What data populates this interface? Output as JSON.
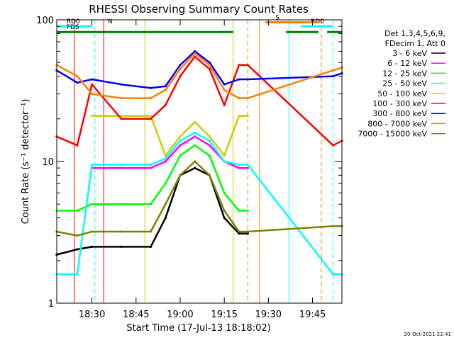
{
  "chart_data": {
    "type": "line",
    "title": "RHESSI Observing Summary Count Rates",
    "xlabel": "Start Time (17-Jul-13 18:18:02)",
    "ylabel": "Count Rate (s⁻¹ detector⁻¹)",
    "y_scale": "log",
    "ylim": [
      1,
      100
    ],
    "xlim": [
      "18:18:02",
      "19:55:00"
    ],
    "x_ticks": [
      "18:30",
      "18:45",
      "19:00",
      "19:15",
      "19:30",
      "19:45"
    ],
    "y_ticks": [
      "1",
      "10",
      "100"
    ],
    "legend_title": [
      "Det 1,3,4,5,6,9,",
      "FDecim 1, Att 0"
    ],
    "legend_position": "right",
    "timestamp": "20-Oct-2021 22:41",
    "series": [
      {
        "name": "3 - 6 keV",
        "color": "#000000",
        "x": [
          "18:18",
          "18:25",
          "18:30",
          "18:40",
          "18:50",
          "18:55",
          "19:00",
          "19:05",
          "19:10",
          "19:15",
          "19:20",
          "19:23"
        ],
        "y": [
          2.2,
          2.4,
          2.5,
          2.5,
          2.5,
          4,
          8,
          9,
          8,
          4,
          3.1,
          3.1
        ]
      },
      {
        "name": "6 - 12 keV",
        "color": "#ff00ff",
        "x": [
          "18:30",
          "18:40",
          "18:50",
          "18:55",
          "19:00",
          "19:05",
          "19:10",
          "19:15",
          "19:20",
          "19:23"
        ],
        "y": [
          9,
          9,
          9,
          10,
          13,
          15,
          13,
          10,
          9,
          9
        ]
      },
      {
        "name": "12 - 25 keV",
        "color": "#00ff00",
        "x": [
          "18:18",
          "18:25",
          "18:30",
          "18:40",
          "18:50",
          "18:55",
          "19:00",
          "19:05",
          "19:10",
          "19:15",
          "19:20",
          "19:23"
        ],
        "y": [
          4.5,
          4.5,
          5,
          5,
          5,
          7,
          11,
          13,
          11,
          6,
          4.5,
          4.5
        ]
      },
      {
        "name": "25 - 50 keV",
        "color": "#00ffff",
        "x": [
          "18:18",
          "18:25",
          "18:30",
          "18:40",
          "18:50",
          "18:55",
          "19:00",
          "19:05",
          "19:10",
          "19:15",
          "19:20",
          "19:23",
          "19:52",
          "19:55"
        ],
        "y": [
          1.6,
          1.6,
          9.5,
          9.5,
          9.5,
          10.5,
          14,
          16,
          14,
          10,
          9.5,
          9.5,
          1.6,
          1.6
        ]
      },
      {
        "name": "50 - 100 keV",
        "color": "#cccc00",
        "x": [
          "18:30",
          "18:40",
          "18:50",
          "18:55",
          "19:00",
          "19:05",
          "19:10",
          "19:15",
          "19:20",
          "19:23"
        ],
        "y": [
          21,
          21,
          21,
          11,
          15,
          19,
          15,
          11,
          21,
          21
        ]
      },
      {
        "name": "100 - 300 keV",
        "color": "#ff0000",
        "x": [
          "18:18",
          "18:25",
          "18:30",
          "18:40",
          "18:50",
          "18:55",
          "19:00",
          "19:05",
          "19:10",
          "19:15",
          "19:20",
          "19:23",
          "19:52",
          "19:55"
        ],
        "y": [
          15,
          13,
          35,
          20,
          20,
          25,
          40,
          55,
          45,
          25,
          48,
          48,
          13,
          14
        ]
      },
      {
        "name": "300 - 800 keV",
        "color": "#0000ff",
        "x": [
          "18:18",
          "18:25",
          "18:30",
          "18:40",
          "18:50",
          "18:55",
          "19:00",
          "19:05",
          "19:10",
          "19:15",
          "19:20",
          "19:23",
          "19:52",
          "19:55"
        ],
        "y": [
          44,
          36,
          38,
          35,
          33,
          34,
          48,
          60,
          50,
          35,
          38,
          38,
          40,
          42
        ]
      },
      {
        "name": "800 - 7000 keV",
        "color": "#ff8000",
        "x": [
          "18:18",
          "18:25",
          "18:30",
          "18:40",
          "18:50",
          "18:55",
          "19:00",
          "19:05",
          "19:10",
          "19:15",
          "19:20",
          "19:23",
          "19:52",
          "19:55"
        ],
        "y": [
          48,
          40,
          30,
          28,
          28,
          32,
          45,
          58,
          48,
          32,
          28,
          28,
          44,
          46
        ]
      },
      {
        "name": "7000 - 15000 keV",
        "color": "#808000",
        "x": [
          "18:18",
          "18:25",
          "18:30",
          "18:40",
          "18:50",
          "18:55",
          "19:00",
          "19:05",
          "19:10",
          "19:15",
          "19:20",
          "19:23",
          "19:52",
          "19:55"
        ],
        "y": [
          3.2,
          3,
          3.2,
          3.2,
          3.2,
          5,
          8,
          10,
          8,
          4.5,
          3.2,
          3.2,
          3.5,
          3.5
        ]
      }
    ],
    "flags": [
      {
        "label": "RD0",
        "color": "#00ffff",
        "from": "18:18",
        "to": "18:30",
        "y": 90
      },
      {
        "label": "RD0",
        "color": "#00ffff",
        "from": "19:41",
        "to": "19:52",
        "y": 90
      },
      {
        "label": "N",
        "color": "#00ffff",
        "from": "18:32",
        "to": "18:32",
        "y": 90
      },
      {
        "label": "S",
        "color": "#ff8000",
        "from": "19:29",
        "to": "19:47",
        "y": 96
      },
      {
        "label": "FDS",
        "color": "#008000",
        "from": "18:18",
        "to": "18:48",
        "y": 82
      },
      {
        "label": "",
        "color": "#008000",
        "from": "18:48",
        "to": "19:18",
        "y": 82
      },
      {
        "label": "",
        "color": "#008000",
        "from": "19:36",
        "to": "19:47",
        "y": 82
      },
      {
        "label": "",
        "color": "#008000",
        "from": "19:50",
        "to": "19:55",
        "y": 82
      }
    ],
    "vertical_lines": [
      {
        "time": "18:24",
        "color": "#ff0000",
        "style": "solid"
      },
      {
        "time": "18:31",
        "color": "#00ffff",
        "style": "dashed"
      },
      {
        "time": "18:34",
        "color": "#ff0000",
        "style": "solid"
      },
      {
        "time": "18:48",
        "color": "#cccc00",
        "style": "solid"
      },
      {
        "time": "19:18",
        "color": "#cccc00",
        "style": "solid"
      },
      {
        "time": "19:23",
        "color": "#ff8000",
        "style": "dashed"
      },
      {
        "time": "19:27",
        "color": "#ff8000",
        "style": "solid"
      },
      {
        "time": "19:37",
        "color": "#00ffff",
        "style": "solid"
      },
      {
        "time": "19:48",
        "color": "#ff8000",
        "style": "dashed"
      },
      {
        "time": "19:52",
        "color": "#00ffff",
        "style": "dashed"
      }
    ]
  }
}
